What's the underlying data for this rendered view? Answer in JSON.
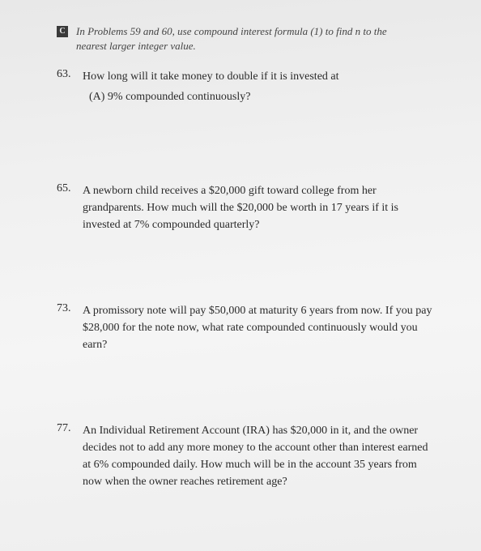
{
  "header": {
    "icon_label": "C",
    "text": "In Problems 59 and 60, use compound interest formula (1) to find n to the nearest larger integer value."
  },
  "problems": [
    {
      "number": "63.",
      "text": "How long will it take money to double if it is invested at",
      "sub": "(A) 9% compounded continuously?"
    },
    {
      "number": "65.",
      "text": "A newborn child receives a $20,000 gift toward college from her grandparents. How much will the $20,000 be worth in 17 years if it is invested at 7% compounded quarterly?",
      "sub": ""
    },
    {
      "number": "73.",
      "text": "A promissory note will pay $50,000 at maturity 6 years from now. If you pay $28,000 for the note now, what rate compounded continuously would you earn?",
      "sub": ""
    },
    {
      "number": "77.",
      "text": "An Individual Retirement Account (IRA) has $20,000 in it, and the owner decides not to add any more money to the account other than interest earned at 6% compounded daily. How much will be in the account 35 years from now when the owner reaches retirement age?",
      "sub": ""
    }
  ]
}
